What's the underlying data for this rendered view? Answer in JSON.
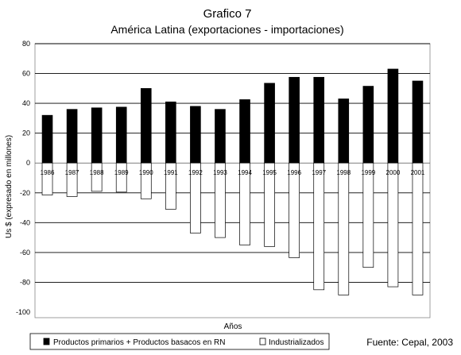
{
  "chart_data": {
    "type": "bar",
    "title": "Grafico 7",
    "subtitle": "América Latina (exportaciones - importaciones)",
    "xlabel": "Años",
    "ylabel": "Us $  (expresado en millones)",
    "categories": [
      "1986",
      "1987",
      "1988",
      "1989",
      "1990",
      "1991",
      "1992",
      "1993",
      "1994",
      "1995",
      "1996",
      "1997",
      "1998",
      "1999",
      "2000",
      "2001"
    ],
    "series": [
      {
        "name": "Productos primarios + Productos basacos en RN",
        "color": "#000000",
        "values": [
          32,
          36,
          37,
          37.5,
          50,
          41,
          38,
          36,
          42.5,
          53.5,
          57.5,
          57.5,
          43,
          51.5,
          63,
          55
        ]
      },
      {
        "name": "Industrializados",
        "color": "#ffffff",
        "values": [
          -21.5,
          -22.5,
          -19,
          -19.5,
          -24,
          -31,
          -47,
          -50,
          -55,
          -56,
          -63.5,
          -85,
          -88.5,
          -70,
          -83,
          -88.5
        ]
      }
    ],
    "ylim": [
      -100,
      80
    ],
    "yticks": [
      80,
      60,
      40,
      20,
      0,
      -20,
      -40,
      -60,
      -80,
      -100
    ],
    "grid": true,
    "legend": "bottom",
    "source": "Fuente: Cepal, 2003"
  }
}
